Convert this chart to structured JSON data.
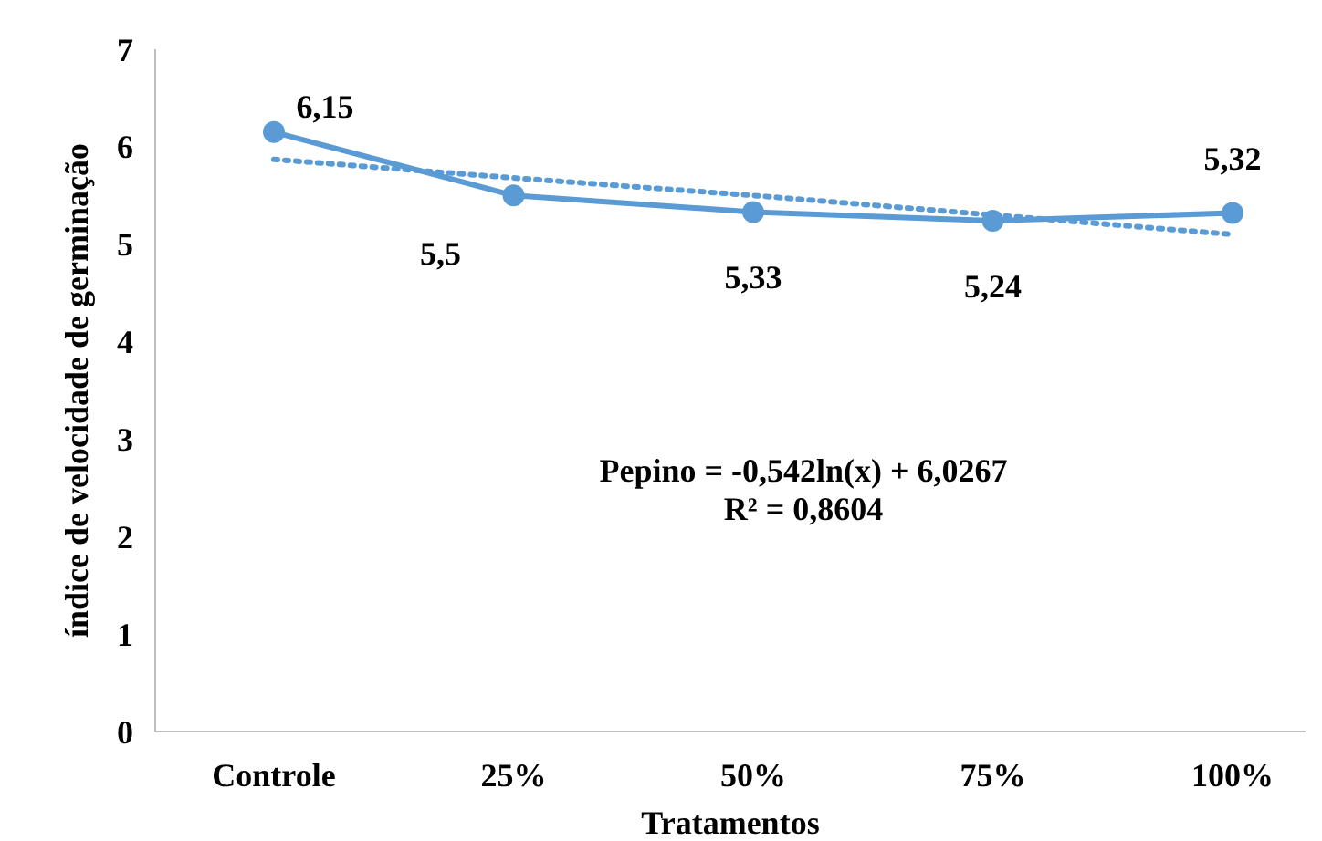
{
  "chart_data": {
    "type": "line",
    "xlabel": "Tratamentos",
    "ylabel": "índice de velocidade de germinação",
    "categories": [
      "Controle",
      "25%",
      "50%",
      "75%",
      "100%"
    ],
    "series": [
      {
        "type": "line",
        "color": "#5b9bd5",
        "values": [
          6.15,
          5.5,
          5.33,
          5.24,
          5.32
        ],
        "value_labels": [
          "6,15",
          "5,5",
          "5,33",
          "5,24",
          "5,32"
        ],
        "marker": "circle",
        "line_style": "solid"
      },
      {
        "type": "line",
        "color": "#5b9bd5",
        "values": [
          5.87,
          5.68,
          5.5,
          5.3,
          5.1
        ],
        "marker": "none",
        "line_style": "dotted"
      }
    ],
    "ylim": [
      0,
      7
    ],
    "yticks": [
      0,
      1,
      2,
      3,
      4,
      5,
      6,
      7
    ],
    "grid": false,
    "annotations": [
      "Pepino = -0,542ln(x) + 6,0267",
      "R² = 0,8604"
    ]
  }
}
